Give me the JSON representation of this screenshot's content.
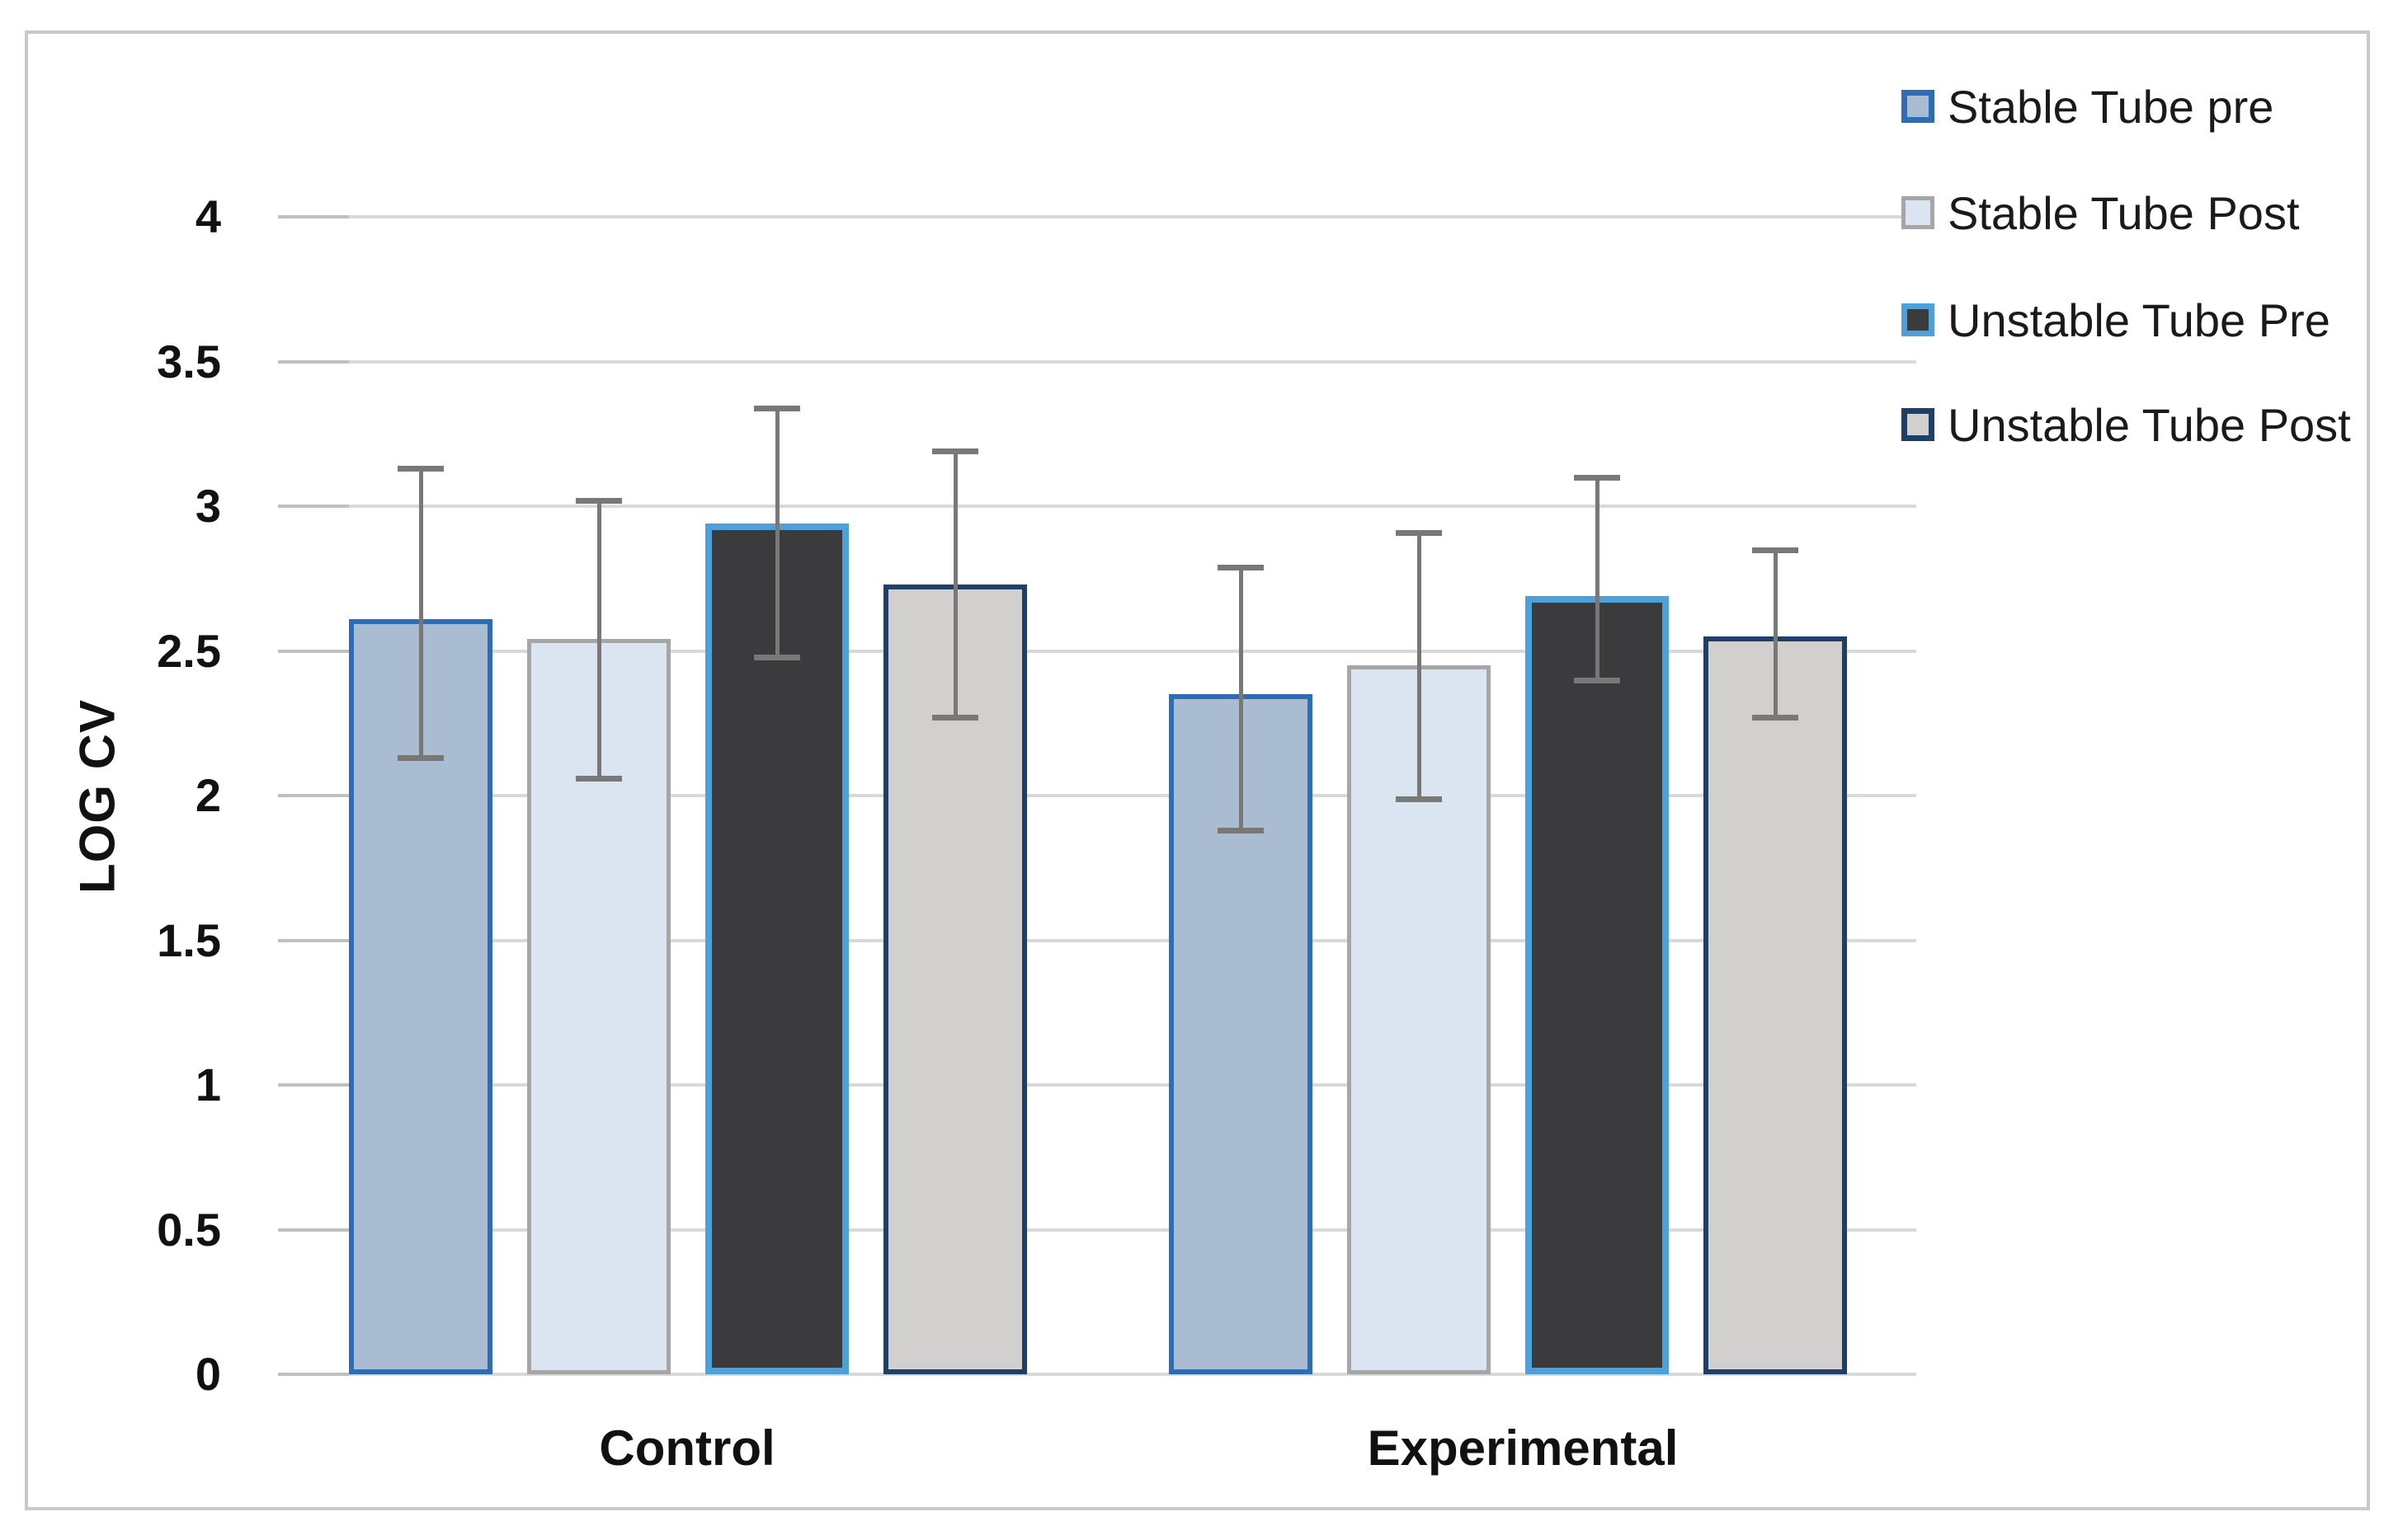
{
  "figure": {
    "frame_color": "#c9c9c9",
    "background_color": "#ffffff"
  },
  "chart_data": {
    "type": "bar",
    "title": "",
    "xlabel": "",
    "ylabel": "LOG CV",
    "categories": [
      "Control",
      "Experimental"
    ],
    "series": [
      {
        "name": "Stable Tube pre",
        "fill": "#a9bcd1",
        "border": "#2e6db4",
        "values": [
          2.61,
          2.35
        ],
        "err_low": [
          2.13,
          1.88
        ],
        "err_high": [
          3.13,
          2.79
        ]
      },
      {
        "name": "Stable Tube Post",
        "fill": "#dbe5f1",
        "border": "#a6a6a6",
        "values": [
          2.54,
          2.45
        ],
        "err_low": [
          2.06,
          1.99
        ],
        "err_high": [
          3.02,
          2.91
        ]
      },
      {
        "name": "Unstable Tube Pre",
        "fill": "#3b3b3d",
        "border": "#4da0d8",
        "values": [
          2.94,
          2.69
        ],
        "err_low": [
          2.48,
          2.4
        ],
        "err_high": [
          3.34,
          3.1
        ]
      },
      {
        "name": "Unstable Tube Post",
        "fill": "#d2cfcf",
        "border": "#1f3f68",
        "values": [
          2.73,
          2.55
        ],
        "err_low": [
          2.27,
          2.27
        ],
        "err_high": [
          3.19,
          2.85
        ]
      }
    ],
    "y_ticks": [
      "0",
      "0.5",
      "1",
      "1.5",
      "2",
      "2.5",
      "3",
      "3.5",
      "4"
    ],
    "ylim": [
      0,
      4
    ],
    "grid": true,
    "gridline_color": "#d9d9d9",
    "tick_stub_color": "#c0c0c0",
    "error_bar_color": "#787878",
    "legend_position": "right-top"
  }
}
